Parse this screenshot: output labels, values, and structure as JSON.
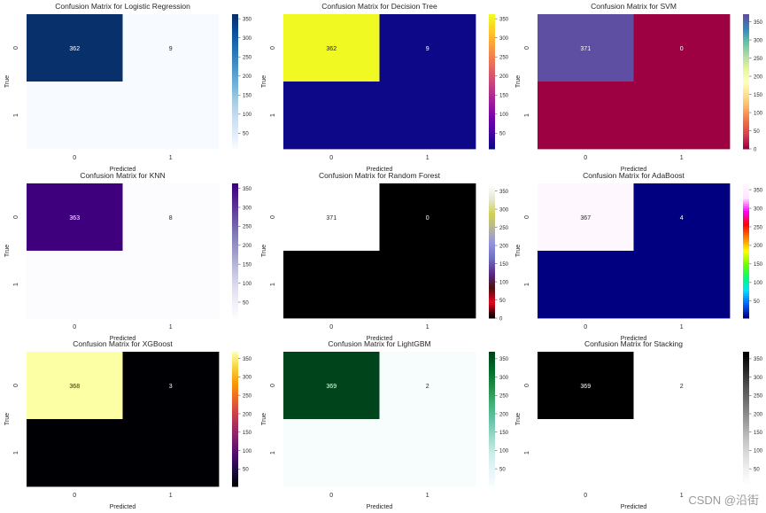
{
  "watermark": "CSDN @沿街",
  "chart_data": [
    {
      "type": "heatmap",
      "title": "Confusion Matrix for Logistic Regression",
      "xlabel": "Predicted",
      "ylabel": "True",
      "x_categories": [
        "0",
        "1"
      ],
      "y_categories": [
        "0",
        "1"
      ],
      "values": [
        [
          362,
          9
        ],
        [
          null,
          null
        ]
      ],
      "colormap": "Blues",
      "colorbar_ticks": [
        50,
        100,
        150,
        200,
        250,
        300,
        350
      ],
      "colorbar_range": [
        9,
        362
      ]
    },
    {
      "type": "heatmap",
      "title": "Confusion Matrix for Decision Tree",
      "xlabel": "Predicted",
      "ylabel": "True",
      "x_categories": [
        "0",
        "1"
      ],
      "y_categories": [
        "0",
        "1"
      ],
      "values": [
        [
          362,
          9
        ],
        [
          null,
          null
        ]
      ],
      "colormap": "plasma",
      "colorbar_ticks": [
        50,
        100,
        150,
        200,
        250,
        300,
        350
      ],
      "colorbar_range": [
        9,
        362
      ]
    },
    {
      "type": "heatmap",
      "title": "Confusion Matrix for SVM",
      "xlabel": "Predicted",
      "ylabel": "True",
      "x_categories": [
        "0",
        "1"
      ],
      "y_categories": [
        "0",
        "1"
      ],
      "values": [
        [
          371,
          0
        ],
        [
          null,
          null
        ]
      ],
      "colormap": "Spectral",
      "colorbar_ticks": [
        0,
        50,
        100,
        150,
        200,
        250,
        300,
        350
      ],
      "colorbar_range": [
        0,
        371
      ]
    },
    {
      "type": "heatmap",
      "title": "Confusion Matrix for KNN",
      "xlabel": "Predicted",
      "ylabel": "True",
      "x_categories": [
        "0",
        "1"
      ],
      "y_categories": [
        "0",
        "1"
      ],
      "values": [
        [
          363,
          8
        ],
        [
          null,
          null
        ]
      ],
      "colormap": "Purples",
      "colorbar_ticks": [
        50,
        100,
        150,
        200,
        250,
        300,
        350
      ],
      "colorbar_range": [
        8,
        363
      ]
    },
    {
      "type": "heatmap",
      "title": "Confusion Matrix for Random Forest",
      "xlabel": "Predicted",
      "ylabel": "True",
      "x_categories": [
        "0",
        "1"
      ],
      "y_categories": [
        "0",
        "1"
      ],
      "values": [
        [
          371,
          0
        ],
        [
          null,
          null
        ]
      ],
      "colormap": "gist_stern",
      "colorbar_ticks": [
        0,
        50,
        100,
        150,
        200,
        250,
        300,
        350
      ],
      "colorbar_range": [
        0,
        371
      ]
    },
    {
      "type": "heatmap",
      "title": "Confusion Matrix for AdaBoost",
      "xlabel": "Predicted",
      "ylabel": "True",
      "x_categories": [
        "0",
        "1"
      ],
      "y_categories": [
        "0",
        "1"
      ],
      "values": [
        [
          367,
          4
        ],
        [
          null,
          null
        ]
      ],
      "colormap": "gist_ncar",
      "colorbar_ticks": [
        50,
        100,
        150,
        200,
        250,
        300,
        350
      ],
      "colorbar_range": [
        4,
        367
      ]
    },
    {
      "type": "heatmap",
      "title": "Confusion Matrix for XGBoost",
      "xlabel": "Predicted",
      "ylabel": "True",
      "x_categories": [
        "0",
        "1"
      ],
      "y_categories": [
        "0",
        "1"
      ],
      "values": [
        [
          368,
          3
        ],
        [
          null,
          null
        ]
      ],
      "colormap": "inferno",
      "colorbar_ticks": [
        50,
        100,
        150,
        200,
        250,
        300,
        350
      ],
      "colorbar_range": [
        3,
        368
      ]
    },
    {
      "type": "heatmap",
      "title": "Confusion Matrix for LightGBM",
      "xlabel": "Predicted",
      "ylabel": "True",
      "x_categories": [
        "0",
        "1"
      ],
      "y_categories": [
        "0",
        "1"
      ],
      "values": [
        [
          369,
          2
        ],
        [
          null,
          null
        ]
      ],
      "colormap": "BuGn",
      "colorbar_ticks": [
        50,
        100,
        150,
        200,
        250,
        300,
        350
      ],
      "colorbar_range": [
        2,
        369
      ]
    },
    {
      "type": "heatmap",
      "title": "Confusion Matrix for Stacking",
      "xlabel": "Predicted",
      "ylabel": "True",
      "x_categories": [
        "0",
        "1"
      ],
      "y_categories": [
        "0",
        "1"
      ],
      "values": [
        [
          369,
          2
        ],
        [
          null,
          null
        ]
      ],
      "colormap": "Greys",
      "colorbar_ticks": [
        50,
        100,
        150,
        200,
        250,
        300,
        350
      ],
      "colorbar_range": [
        2,
        369
      ]
    }
  ]
}
